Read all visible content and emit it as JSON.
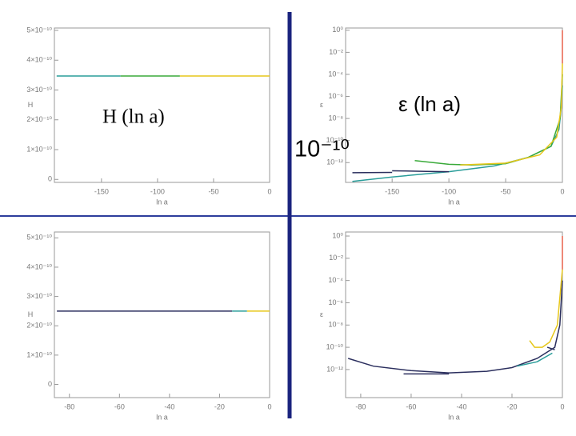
{
  "annotations": [
    "H (ln a)",
    "ε (ln a)",
    "10⁻¹⁰"
  ],
  "chart_data": [
    {
      "type": "line",
      "xlabel": "ln a",
      "ylabel": "H",
      "log_y": false,
      "xlim": [
        -192,
        0
      ],
      "xticks": [
        -150,
        -100,
        -50,
        0
      ],
      "ylim": [
        -1e-11,
        5.08e-10
      ],
      "yticks": [
        0,
        {
          "value": 1e-10,
          "label": "1×10⁻¹⁰"
        },
        {
          "value": 2e-10,
          "label": "2×10⁻¹⁰"
        },
        {
          "value": 3e-10,
          "label": "3×10⁻¹⁰"
        },
        {
          "value": 4e-10,
          "label": "4×10⁻¹⁰"
        },
        {
          "value": 5e-10,
          "label": "5×10⁻¹⁰"
        }
      ],
      "series": [
        {
          "color": "#2a9d9a",
          "x": [
            -190,
            -133
          ],
          "values": [
            3.47e-10,
            3.47e-10
          ]
        },
        {
          "color": "#3aaa3a",
          "x": [
            -133,
            -80
          ],
          "values": [
            3.47e-10,
            3.47e-10
          ]
        },
        {
          "color": "#e6c619",
          "x": [
            -80,
            0
          ],
          "values": [
            3.47e-10,
            3.47e-10
          ]
        }
      ]
    },
    {
      "type": "line",
      "xlabel": "ln a",
      "ylabel": "ε",
      "log_y": true,
      "xlim": [
        -191,
        0
      ],
      "xticks": [
        -150,
        -100,
        -50,
        0
      ],
      "ylim": [
        1.6e-14,
        1.6
      ],
      "yticks": [
        {
          "value": 1,
          "label": "10⁰"
        },
        {
          "value": 0.01,
          "label": "10⁻²"
        },
        {
          "value": 0.0001,
          "label": "10⁻⁴"
        },
        {
          "value": 1e-06,
          "label": "10⁻⁶"
        },
        {
          "value": 1e-08,
          "label": "10⁻⁸"
        },
        {
          "value": 1e-10,
          "label": "10⁻¹⁰"
        },
        {
          "value": 1e-12,
          "label": "10⁻¹²"
        }
      ],
      "series": [
        {
          "color": "#2a9d9a",
          "x": [
            -185,
            -150,
            -100,
            -60,
            -30,
            -10,
            -3,
            -1,
            0
          ],
          "values": [
            2e-14,
            5e-14,
            1.5e-13,
            5e-13,
            3e-12,
            3e-11,
            1e-09,
            1e-07,
            1e-05
          ]
        },
        {
          "color": "#2b2f5e",
          "x": [
            -185,
            -150
          ],
          "values": [
            1.2e-13,
            1.3e-13
          ]
        },
        {
          "color": "#2b2f5e",
          "x": [
            -150,
            -120,
            -100
          ],
          "values": [
            1.8e-13,
            1.6e-13,
            1.5e-13
          ]
        },
        {
          "color": "#3aaa3a",
          "x": [
            -130,
            -100,
            -80,
            -50,
            -30,
            -10,
            -2,
            0
          ],
          "values": [
            1.5e-12,
            7e-13,
            6e-13,
            8e-13,
            3e-12,
            3e-11,
            1e-08,
            0.0001
          ]
        },
        {
          "color": "#e6c619",
          "x": [
            -90,
            -50,
            -20,
            -5,
            -1,
            0
          ],
          "values": [
            6e-13,
            9e-13,
            5e-12,
            2e-10,
            1e-07,
            0.001
          ]
        },
        {
          "color": "#e8604a",
          "x": [
            0,
            0
          ],
          "values": [
            0.001,
            1
          ]
        }
      ]
    },
    {
      "type": "line",
      "xlabel": "ln a",
      "ylabel": "H",
      "log_y": false,
      "xlim": [
        -86,
        0
      ],
      "xticks": [
        -80,
        -60,
        -40,
        -20,
        0
      ],
      "ylim": [
        -4.5e-11,
        5.2e-10
      ],
      "yticks": [
        0,
        {
          "value": 1e-10,
          "label": "1×10⁻¹⁰"
        },
        {
          "value": 2e-10,
          "label": "2×10⁻¹⁰"
        },
        {
          "value": 3e-10,
          "label": "3×10⁻¹⁰"
        },
        {
          "value": 4e-10,
          "label": "4×10⁻¹⁰"
        },
        {
          "value": 5e-10,
          "label": "5×10⁻¹⁰"
        }
      ],
      "series": [
        {
          "color": "#2b2f5e",
          "x": [
            -85,
            -15
          ],
          "values": [
            2.5e-10,
            2.5e-10
          ]
        },
        {
          "color": "#2a9d9a",
          "x": [
            -15,
            -9
          ],
          "values": [
            2.5e-10,
            2.5e-10
          ]
        },
        {
          "color": "#e6c619",
          "x": [
            -9,
            0
          ],
          "values": [
            2.5e-10,
            2.5e-10
          ]
        }
      ]
    },
    {
      "type": "line",
      "xlabel": "ln a",
      "ylabel": "ε",
      "log_y": true,
      "xlim": [
        -86,
        0
      ],
      "xticks": [
        -80,
        -60,
        -40,
        -20,
        0
      ],
      "ylim": [
        3e-15,
        2.3
      ],
      "yticks": [
        {
          "value": 1,
          "label": "10⁰"
        },
        {
          "value": 0.01,
          "label": "10⁻²"
        },
        {
          "value": 0.0001,
          "label": "10⁻⁴"
        },
        {
          "value": 1e-06,
          "label": "10⁻⁶"
        },
        {
          "value": 1e-08,
          "label": "10⁻⁸"
        },
        {
          "value": 1e-10,
          "label": "10⁻¹⁰"
        },
        {
          "value": 1e-12,
          "label": "10⁻¹²"
        }
      ],
      "series": [
        {
          "color": "#2b2f5e",
          "x": [
            -85,
            -75,
            -60,
            -45,
            -30,
            -20,
            -10,
            -3,
            -1,
            0
          ],
          "values": [
            1e-11,
            2e-12,
            8e-13,
            5e-13,
            7e-13,
            1.5e-12,
            1e-11,
            1e-10,
            1e-08,
            0.0001
          ]
        },
        {
          "color": "#2b2f5e",
          "x": [
            -63,
            -45
          ],
          "values": [
            4e-13,
            4e-13
          ]
        },
        {
          "color": "#2a9d9a",
          "x": [
            -18,
            -10,
            -4
          ],
          "values": [
            2e-12,
            5e-12,
            3e-11
          ]
        },
        {
          "color": "#e6c619",
          "x": [
            -13,
            -11,
            -8,
            -5,
            -2,
            0
          ],
          "values": [
            4e-10,
            1e-10,
            1e-10,
            3e-10,
            1e-08,
            0.001
          ]
        },
        {
          "color": "#2b2f5e",
          "x": [
            -6,
            -3
          ],
          "values": [
            1e-10,
            6e-11
          ]
        },
        {
          "color": "#e8604a",
          "x": [
            0,
            0
          ],
          "values": [
            0.001,
            1
          ]
        }
      ]
    }
  ]
}
